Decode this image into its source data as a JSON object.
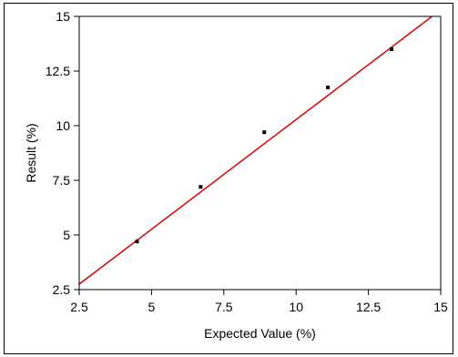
{
  "chart_data": {
    "type": "scatter",
    "title": "",
    "xlabel": "Expected Value (%)",
    "ylabel": "Result (%)",
    "xlim": [
      2.5,
      15
    ],
    "ylim": [
      2.5,
      15
    ],
    "xticks": [
      2.5,
      5,
      7.5,
      10,
      12.5,
      15
    ],
    "yticks": [
      2.5,
      5,
      7.5,
      10,
      12.5,
      15
    ],
    "x_tick_labels": [
      "2.5",
      "5",
      "7.5",
      "10",
      "12.5",
      "15"
    ],
    "y_tick_labels": [
      "2.5",
      "5",
      "7.5",
      "10",
      "12.5",
      "15"
    ],
    "grid": false,
    "series": [
      {
        "type": "scatter",
        "x": [
          4.5,
          6.7,
          8.9,
          11.1,
          13.3
        ],
        "y": [
          4.7,
          7.2,
          9.7,
          11.75,
          13.5
        ],
        "color": "#000000"
      },
      {
        "type": "line",
        "x": [
          2.5,
          14.7
        ],
        "y": [
          2.75,
          15.0
        ],
        "color": "#dd0000"
      }
    ]
  }
}
